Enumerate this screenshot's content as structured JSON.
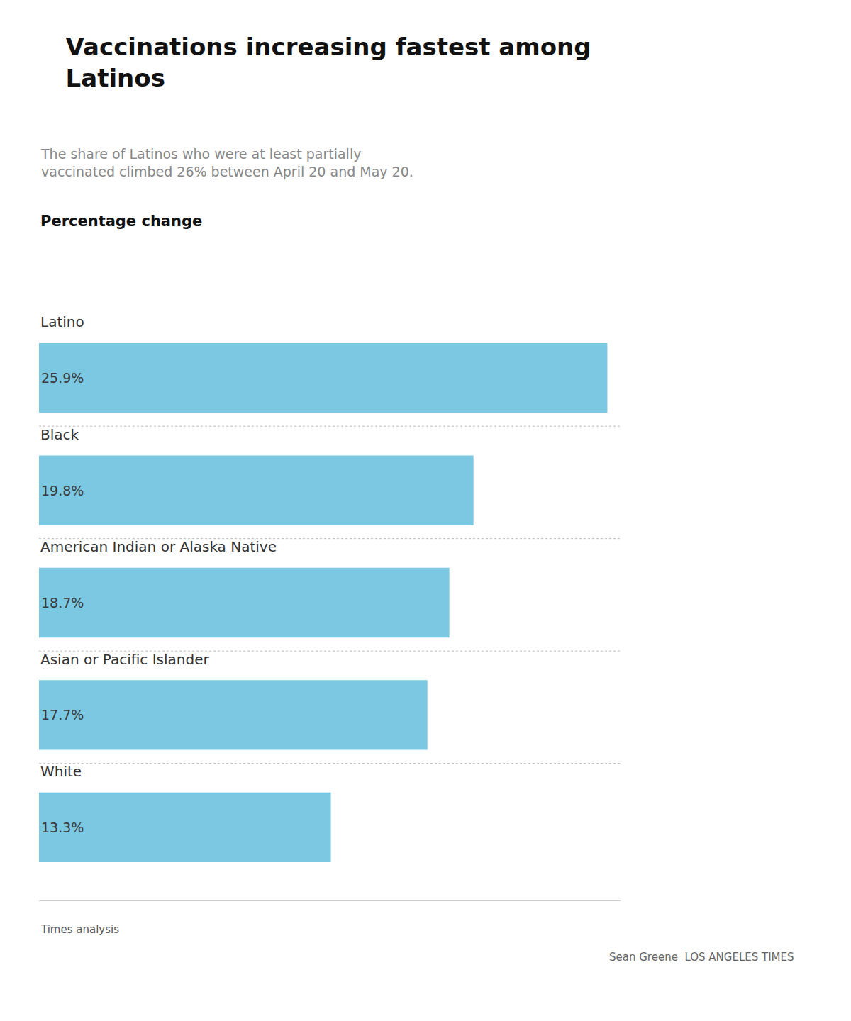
{
  "chart_data": {
    "type": "bar",
    "orientation": "horizontal",
    "title": "Vaccinations increasing fastest among\nLatinos",
    "subtitle": "The share of Latinos who were at least partially\nvaccinated climbed 26% between April 20 and May 20.",
    "annotations": [
      "Percentage change",
      "Times analysis",
      "Sean Greene  LOS ANGELES TIMES"
    ],
    "categories": [
      "Latino",
      "Black",
      "American Indian or Alaska Native",
      "Asian or Pacific Islander",
      "White"
    ],
    "values": [
      25.9,
      19.8,
      18.7,
      17.7,
      13.3
    ],
    "value_labels": [
      "25.9%",
      "19.8%",
      "18.7%",
      "17.7%",
      "13.3%"
    ],
    "data_labels": true,
    "color": "#7BC8E2",
    "xlim": [
      0,
      26.5
    ],
    "xticks": [],
    "tick_labels": false,
    "grid": false
  }
}
